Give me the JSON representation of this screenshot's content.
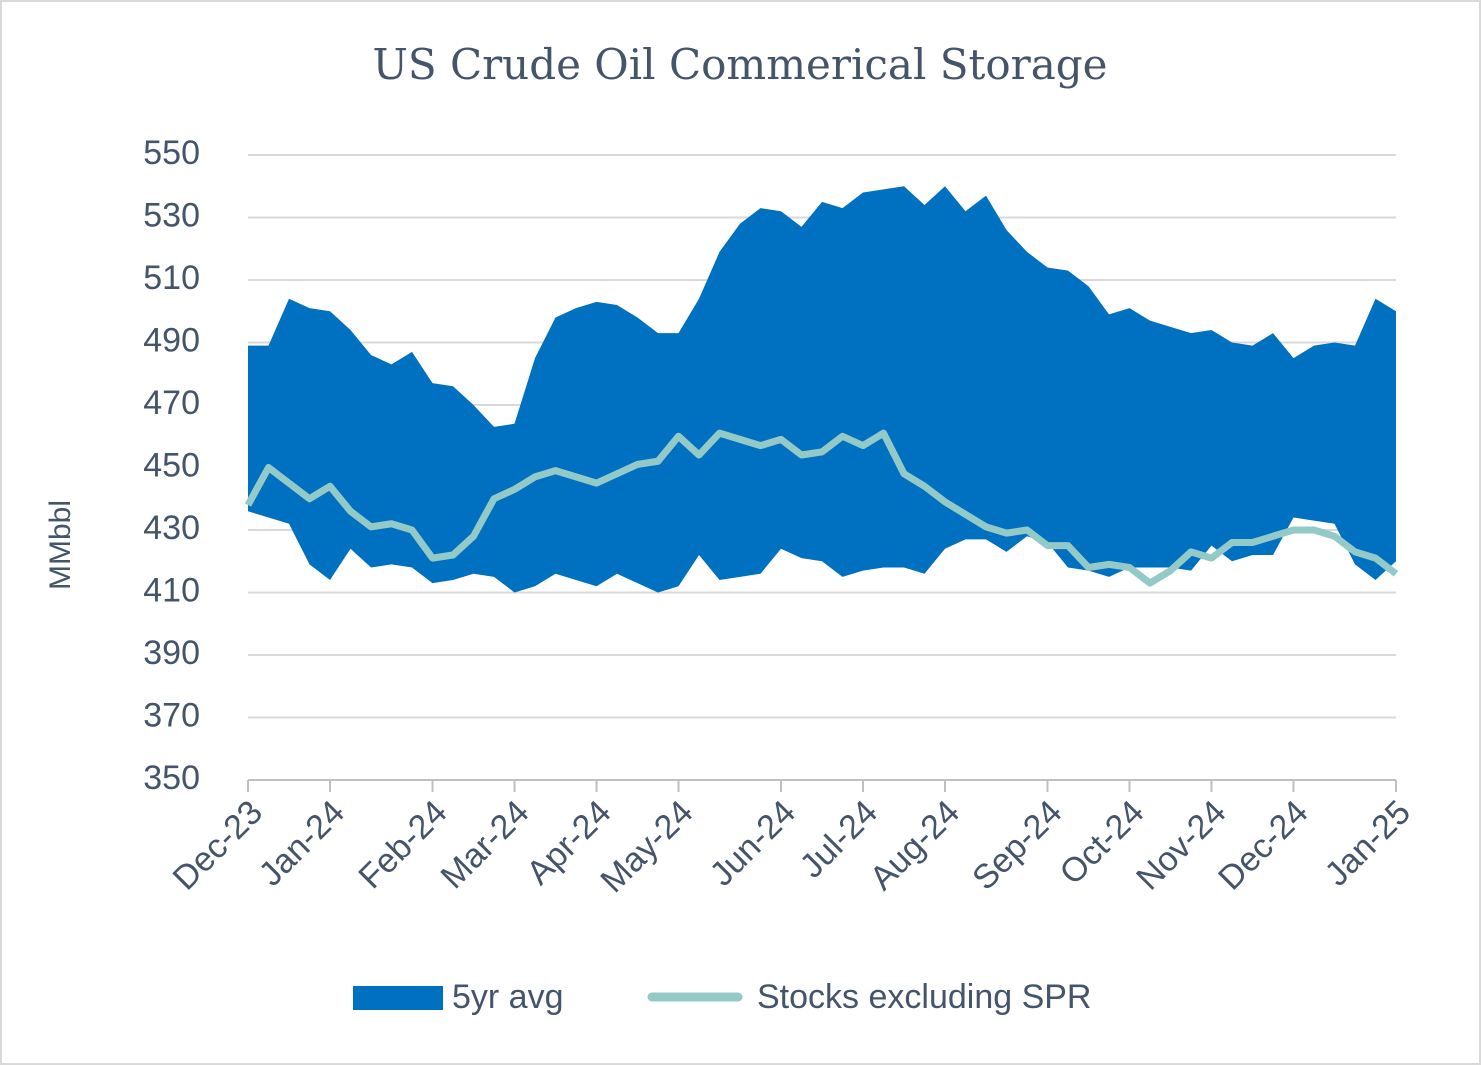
{
  "chart_data": {
    "type": "band-line",
    "title": "US Crude Oil Commerical Storage",
    "y_label": "MMbbl",
    "categories": [
      "Dec-23",
      null,
      null,
      null,
      "Jan-24",
      null,
      null,
      null,
      null,
      "Feb-24",
      null,
      null,
      null,
      "Mar-24",
      null,
      null,
      null,
      "Apr-24",
      null,
      null,
      null,
      "May-24",
      null,
      null,
      null,
      null,
      "Jun-24",
      null,
      null,
      null,
      "Jul-24",
      null,
      null,
      null,
      "Aug-24",
      null,
      null,
      null,
      null,
      "Sep-24",
      null,
      null,
      null,
      "Oct-24",
      null,
      null,
      null,
      "Nov-24",
      null,
      null,
      null,
      "Dec-24",
      null,
      null,
      null,
      null,
      "Jan-25"
    ],
    "series": [
      {
        "name": "5yr avg",
        "color": "#0070c0",
        "high": [
          489,
          489,
          504,
          501,
          500,
          494,
          486,
          483,
          487,
          477,
          476,
          470,
          463,
          464,
          485,
          498,
          501,
          503,
          502,
          498,
          493,
          493,
          504,
          519,
          528,
          533,
          532,
          527,
          535,
          533,
          538,
          539,
          540,
          534,
          540,
          532,
          537,
          526,
          519,
          514,
          513,
          508,
          499,
          501,
          497,
          495,
          493,
          494,
          490,
          489,
          493,
          485,
          489,
          490,
          489,
          504,
          500
        ],
        "low": [
          436,
          434,
          432,
          419,
          414,
          424,
          418,
          419,
          418,
          413,
          414,
          416,
          415,
          410,
          412,
          416,
          414,
          412,
          416,
          413,
          410,
          412,
          422,
          414,
          415,
          416,
          424,
          421,
          420,
          415,
          417,
          418,
          418,
          416,
          424,
          427,
          427,
          423,
          428,
          426,
          418,
          417,
          415,
          418,
          418,
          418,
          417,
          425,
          420,
          422,
          422,
          434,
          433,
          432,
          419,
          414,
          420
        ]
      },
      {
        "name": "Stocks excluding SPR",
        "color": "#93cac8",
        "values": [
          438,
          450,
          445,
          440,
          444,
          436,
          431,
          432,
          430,
          421,
          422,
          428,
          440,
          443,
          447,
          449,
          447,
          445,
          448,
          451,
          452,
          460,
          454,
          461,
          459,
          457,
          459,
          454,
          455,
          460,
          457,
          461,
          448,
          444,
          439,
          435,
          431,
          429,
          430,
          425,
          425,
          418,
          419,
          418,
          413,
          417,
          423,
          421,
          426,
          426,
          428,
          430,
          430,
          428,
          423,
          421,
          416
        ]
      }
    ],
    "ylim": [
      350,
      550
    ],
    "yticks": [
      350,
      370,
      390,
      410,
      430,
      450,
      470,
      490,
      510,
      530,
      550
    ],
    "grid": true
  }
}
